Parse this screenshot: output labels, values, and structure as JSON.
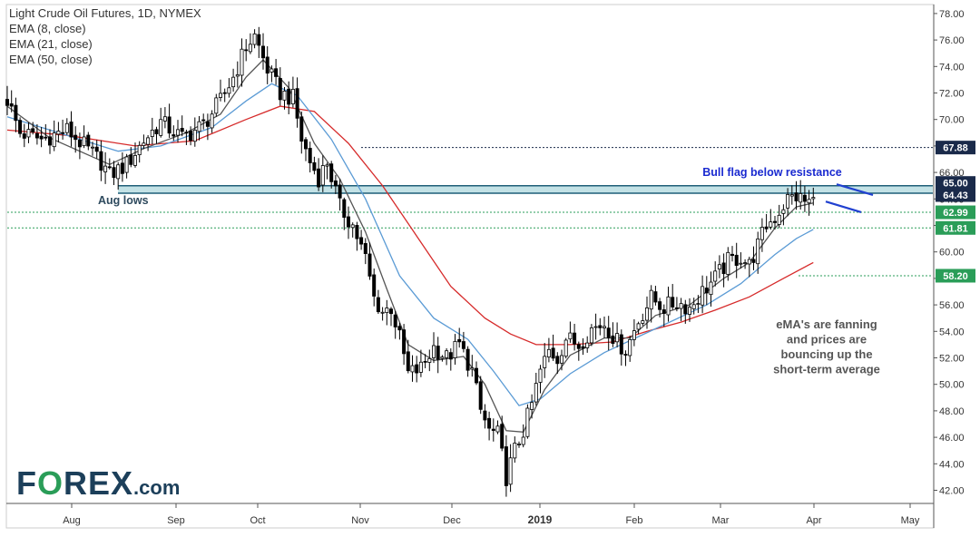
{
  "legend": {
    "title": "Light Crude Oil Futures, 1D, NYMEX",
    "ema8": "EMA (8, close)",
    "ema21": "EMA (21, close)",
    "ema50": "EMA (50, close)"
  },
  "logo": {
    "text_left": "F",
    "text_o": "O",
    "text_right": "REX",
    "suffix": ".com"
  },
  "colors": {
    "up_candle": "#ffffff",
    "down_candle": "#000000",
    "ema8": "#555555",
    "ema21": "#5b9bd5",
    "ema50": "#d62a2a",
    "resistance_fill": "#a9d6dc",
    "resistance_line": "#1f5f78",
    "green_level": "#2a9d58",
    "navy_level": "#1a2a4a",
    "flag": "#2040d0"
  },
  "chart_data": {
    "type": "candlestick",
    "title": "Light Crude Oil Futures, 1D, NYMEX",
    "x_labels": [
      "Aug",
      "Sep",
      "Oct",
      "Nov",
      "Dec",
      "2019",
      "Feb",
      "Mar",
      "Apr",
      "May"
    ],
    "y_ticks": [
      42,
      44,
      46,
      48,
      50,
      52,
      54,
      56,
      58,
      60,
      62,
      64,
      66,
      68,
      70,
      72,
      74,
      76,
      78
    ],
    "y_tick_labels": [
      "42.00",
      "44.00",
      "46.00",
      "48.00",
      "50.00",
      "52.00",
      "54.00",
      "56.00",
      "58.00",
      "60.00",
      "62.00",
      "64.00",
      "66.00",
      "68.00",
      "70.00",
      "72.00",
      "74.00",
      "76.00",
      "78.00"
    ],
    "ylim": [
      41,
      78.5
    ],
    "price_levels": [
      {
        "value": 67.88,
        "label": "67.88",
        "color": "#1a2a4a"
      },
      {
        "value": 65.0,
        "label": "65.00",
        "color": "#1a2a4a"
      },
      {
        "value": 64.43,
        "label": "64.43",
        "color": "#1a2a4a"
      },
      {
        "value": 62.99,
        "label": "62.99",
        "color": "#2a9d58"
      },
      {
        "value": 61.81,
        "label": "61.81",
        "color": "#2a9d58"
      },
      {
        "value": 58.2,
        "label": "58.20",
        "color": "#2a9d58"
      }
    ],
    "resistance_zone": [
      64.43,
      65.0
    ],
    "annotations": {
      "aug_lows": "Aug lows",
      "bull_flag": "Bull flag below resistance",
      "ema_note": [
        "eMA's are fanning",
        "and prices are",
        "bouncing up the",
        "short-term average"
      ]
    },
    "price_anchors": [
      {
        "d": 0,
        "p": 71.5
      },
      {
        "d": 3,
        "p": 69.0
      },
      {
        "d": 8,
        "p": 68.5
      },
      {
        "d": 14,
        "p": 69.2
      },
      {
        "d": 18,
        "p": 68.0
      },
      {
        "d": 22,
        "p": 66.8
      },
      {
        "d": 24,
        "p": 65.8
      },
      {
        "d": 28,
        "p": 66.6
      },
      {
        "d": 32,
        "p": 68.4
      },
      {
        "d": 36,
        "p": 69.8
      },
      {
        "d": 41,
        "p": 68.6
      },
      {
        "d": 46,
        "p": 69.6
      },
      {
        "d": 50,
        "p": 71.4
      },
      {
        "d": 53,
        "p": 73.2
      },
      {
        "d": 56,
        "p": 75.5
      },
      {
        "d": 58,
        "p": 76.3
      },
      {
        "d": 61,
        "p": 73.8
      },
      {
        "d": 64,
        "p": 72.0
      },
      {
        "d": 67,
        "p": 71.6
      },
      {
        "d": 69,
        "p": 68.5
      },
      {
        "d": 71,
        "p": 66.8
      },
      {
        "d": 73,
        "p": 65.6
      },
      {
        "d": 75,
        "p": 66.8
      },
      {
        "d": 78,
        "p": 63.4
      },
      {
        "d": 81,
        "p": 62.0
      },
      {
        "d": 84,
        "p": 59.5
      },
      {
        "d": 86,
        "p": 56.5
      },
      {
        "d": 88,
        "p": 55.5
      },
      {
        "d": 90,
        "p": 55.8
      },
      {
        "d": 92,
        "p": 53.5
      },
      {
        "d": 94,
        "p": 50.8
      },
      {
        "d": 97,
        "p": 51.2
      },
      {
        "d": 100,
        "p": 52.8
      },
      {
        "d": 103,
        "p": 52.0
      },
      {
        "d": 106,
        "p": 53.0
      },
      {
        "d": 109,
        "p": 51.0
      },
      {
        "d": 111,
        "p": 48.0
      },
      {
        "d": 113,
        "p": 46.5
      },
      {
        "d": 115,
        "p": 46.2
      },
      {
        "d": 117,
        "p": 43.0
      },
      {
        "d": 119,
        "p": 45.0
      },
      {
        "d": 121,
        "p": 46.5
      },
      {
        "d": 123,
        "p": 48.5
      },
      {
        "d": 125,
        "p": 51.0
      },
      {
        "d": 127,
        "p": 52.5
      },
      {
        "d": 129,
        "p": 52.0
      },
      {
        "d": 131,
        "p": 53.5
      },
      {
        "d": 134,
        "p": 53.0
      },
      {
        "d": 137,
        "p": 54.2
      },
      {
        "d": 140,
        "p": 54.6
      },
      {
        "d": 143,
        "p": 53.2
      },
      {
        "d": 145,
        "p": 52.6
      },
      {
        "d": 148,
        "p": 54.8
      },
      {
        "d": 151,
        "p": 56.5
      },
      {
        "d": 154,
        "p": 55.8
      },
      {
        "d": 157,
        "p": 56.2
      },
      {
        "d": 160,
        "p": 55.8
      },
      {
        "d": 163,
        "p": 57.0
      },
      {
        "d": 166,
        "p": 58.0
      },
      {
        "d": 169,
        "p": 59.3
      },
      {
        "d": 172,
        "p": 59.6
      },
      {
        "d": 174,
        "p": 59.0
      },
      {
        "d": 176,
        "p": 60.5
      },
      {
        "d": 178,
        "p": 62.0
      },
      {
        "d": 180,
        "p": 62.6
      },
      {
        "d": 183,
        "p": 64.0
      },
      {
        "d": 185,
        "p": 64.2
      },
      {
        "d": 187,
        "p": 63.8
      },
      {
        "d": 189,
        "p": 63.8
      }
    ],
    "ema8": [
      {
        "d": 0,
        "p": 71.0
      },
      {
        "d": 10,
        "p": 68.6
      },
      {
        "d": 24,
        "p": 66.6
      },
      {
        "d": 32,
        "p": 67.8
      },
      {
        "d": 42,
        "p": 69.0
      },
      {
        "d": 50,
        "p": 70.4
      },
      {
        "d": 56,
        "p": 73.2
      },
      {
        "d": 60,
        "p": 74.5
      },
      {
        "d": 66,
        "p": 72.4
      },
      {
        "d": 72,
        "p": 68.2
      },
      {
        "d": 78,
        "p": 65.5
      },
      {
        "d": 84,
        "p": 61.5
      },
      {
        "d": 89,
        "p": 57.2
      },
      {
        "d": 94,
        "p": 53.0
      },
      {
        "d": 100,
        "p": 51.8
      },
      {
        "d": 107,
        "p": 52.1
      },
      {
        "d": 112,
        "p": 50.0
      },
      {
        "d": 117,
        "p": 46.5
      },
      {
        "d": 121,
        "p": 46.4
      },
      {
        "d": 126,
        "p": 49.6
      },
      {
        "d": 132,
        "p": 52.2
      },
      {
        "d": 140,
        "p": 53.5
      },
      {
        "d": 146,
        "p": 53.5
      },
      {
        "d": 152,
        "p": 55.2
      },
      {
        "d": 160,
        "p": 56.0
      },
      {
        "d": 168,
        "p": 58.0
      },
      {
        "d": 174,
        "p": 59.2
      },
      {
        "d": 180,
        "p": 61.8
      },
      {
        "d": 185,
        "p": 63.4
      },
      {
        "d": 189,
        "p": 63.7
      }
    ],
    "ema21": [
      {
        "d": 0,
        "p": 70.2
      },
      {
        "d": 12,
        "p": 69.0
      },
      {
        "d": 26,
        "p": 67.6
      },
      {
        "d": 36,
        "p": 68.0
      },
      {
        "d": 48,
        "p": 69.4
      },
      {
        "d": 56,
        "p": 71.4
      },
      {
        "d": 62,
        "p": 72.7
      },
      {
        "d": 68,
        "p": 71.8
      },
      {
        "d": 76,
        "p": 68.5
      },
      {
        "d": 84,
        "p": 64.0
      },
      {
        "d": 92,
        "p": 58.2
      },
      {
        "d": 100,
        "p": 55.0
      },
      {
        "d": 108,
        "p": 53.4
      },
      {
        "d": 114,
        "p": 51.0
      },
      {
        "d": 120,
        "p": 48.4
      },
      {
        "d": 125,
        "p": 48.9
      },
      {
        "d": 132,
        "p": 50.8
      },
      {
        "d": 140,
        "p": 52.4
      },
      {
        "d": 148,
        "p": 53.6
      },
      {
        "d": 156,
        "p": 54.8
      },
      {
        "d": 164,
        "p": 56.0
      },
      {
        "d": 172,
        "p": 57.6
      },
      {
        "d": 180,
        "p": 59.8
      },
      {
        "d": 185,
        "p": 61.0
      },
      {
        "d": 189,
        "p": 61.7
      }
    ],
    "ema50": [
      {
        "d": 0,
        "p": 69.2
      },
      {
        "d": 14,
        "p": 68.8
      },
      {
        "d": 30,
        "p": 68.0
      },
      {
        "d": 44,
        "p": 68.4
      },
      {
        "d": 56,
        "p": 70.0
      },
      {
        "d": 64,
        "p": 71.0
      },
      {
        "d": 72,
        "p": 70.6
      },
      {
        "d": 80,
        "p": 68.2
      },
      {
        "d": 88,
        "p": 65.0
      },
      {
        "d": 96,
        "p": 61.2
      },
      {
        "d": 104,
        "p": 57.4
      },
      {
        "d": 112,
        "p": 55.0
      },
      {
        "d": 118,
        "p": 53.8
      },
      {
        "d": 124,
        "p": 53.0
      },
      {
        "d": 132,
        "p": 53.0
      },
      {
        "d": 142,
        "p": 53.2
      },
      {
        "d": 150,
        "p": 54.0
      },
      {
        "d": 158,
        "p": 54.7
      },
      {
        "d": 166,
        "p": 55.6
      },
      {
        "d": 174,
        "p": 56.6
      },
      {
        "d": 182,
        "p": 58.0
      },
      {
        "d": 189,
        "p": 59.2
      }
    ]
  }
}
